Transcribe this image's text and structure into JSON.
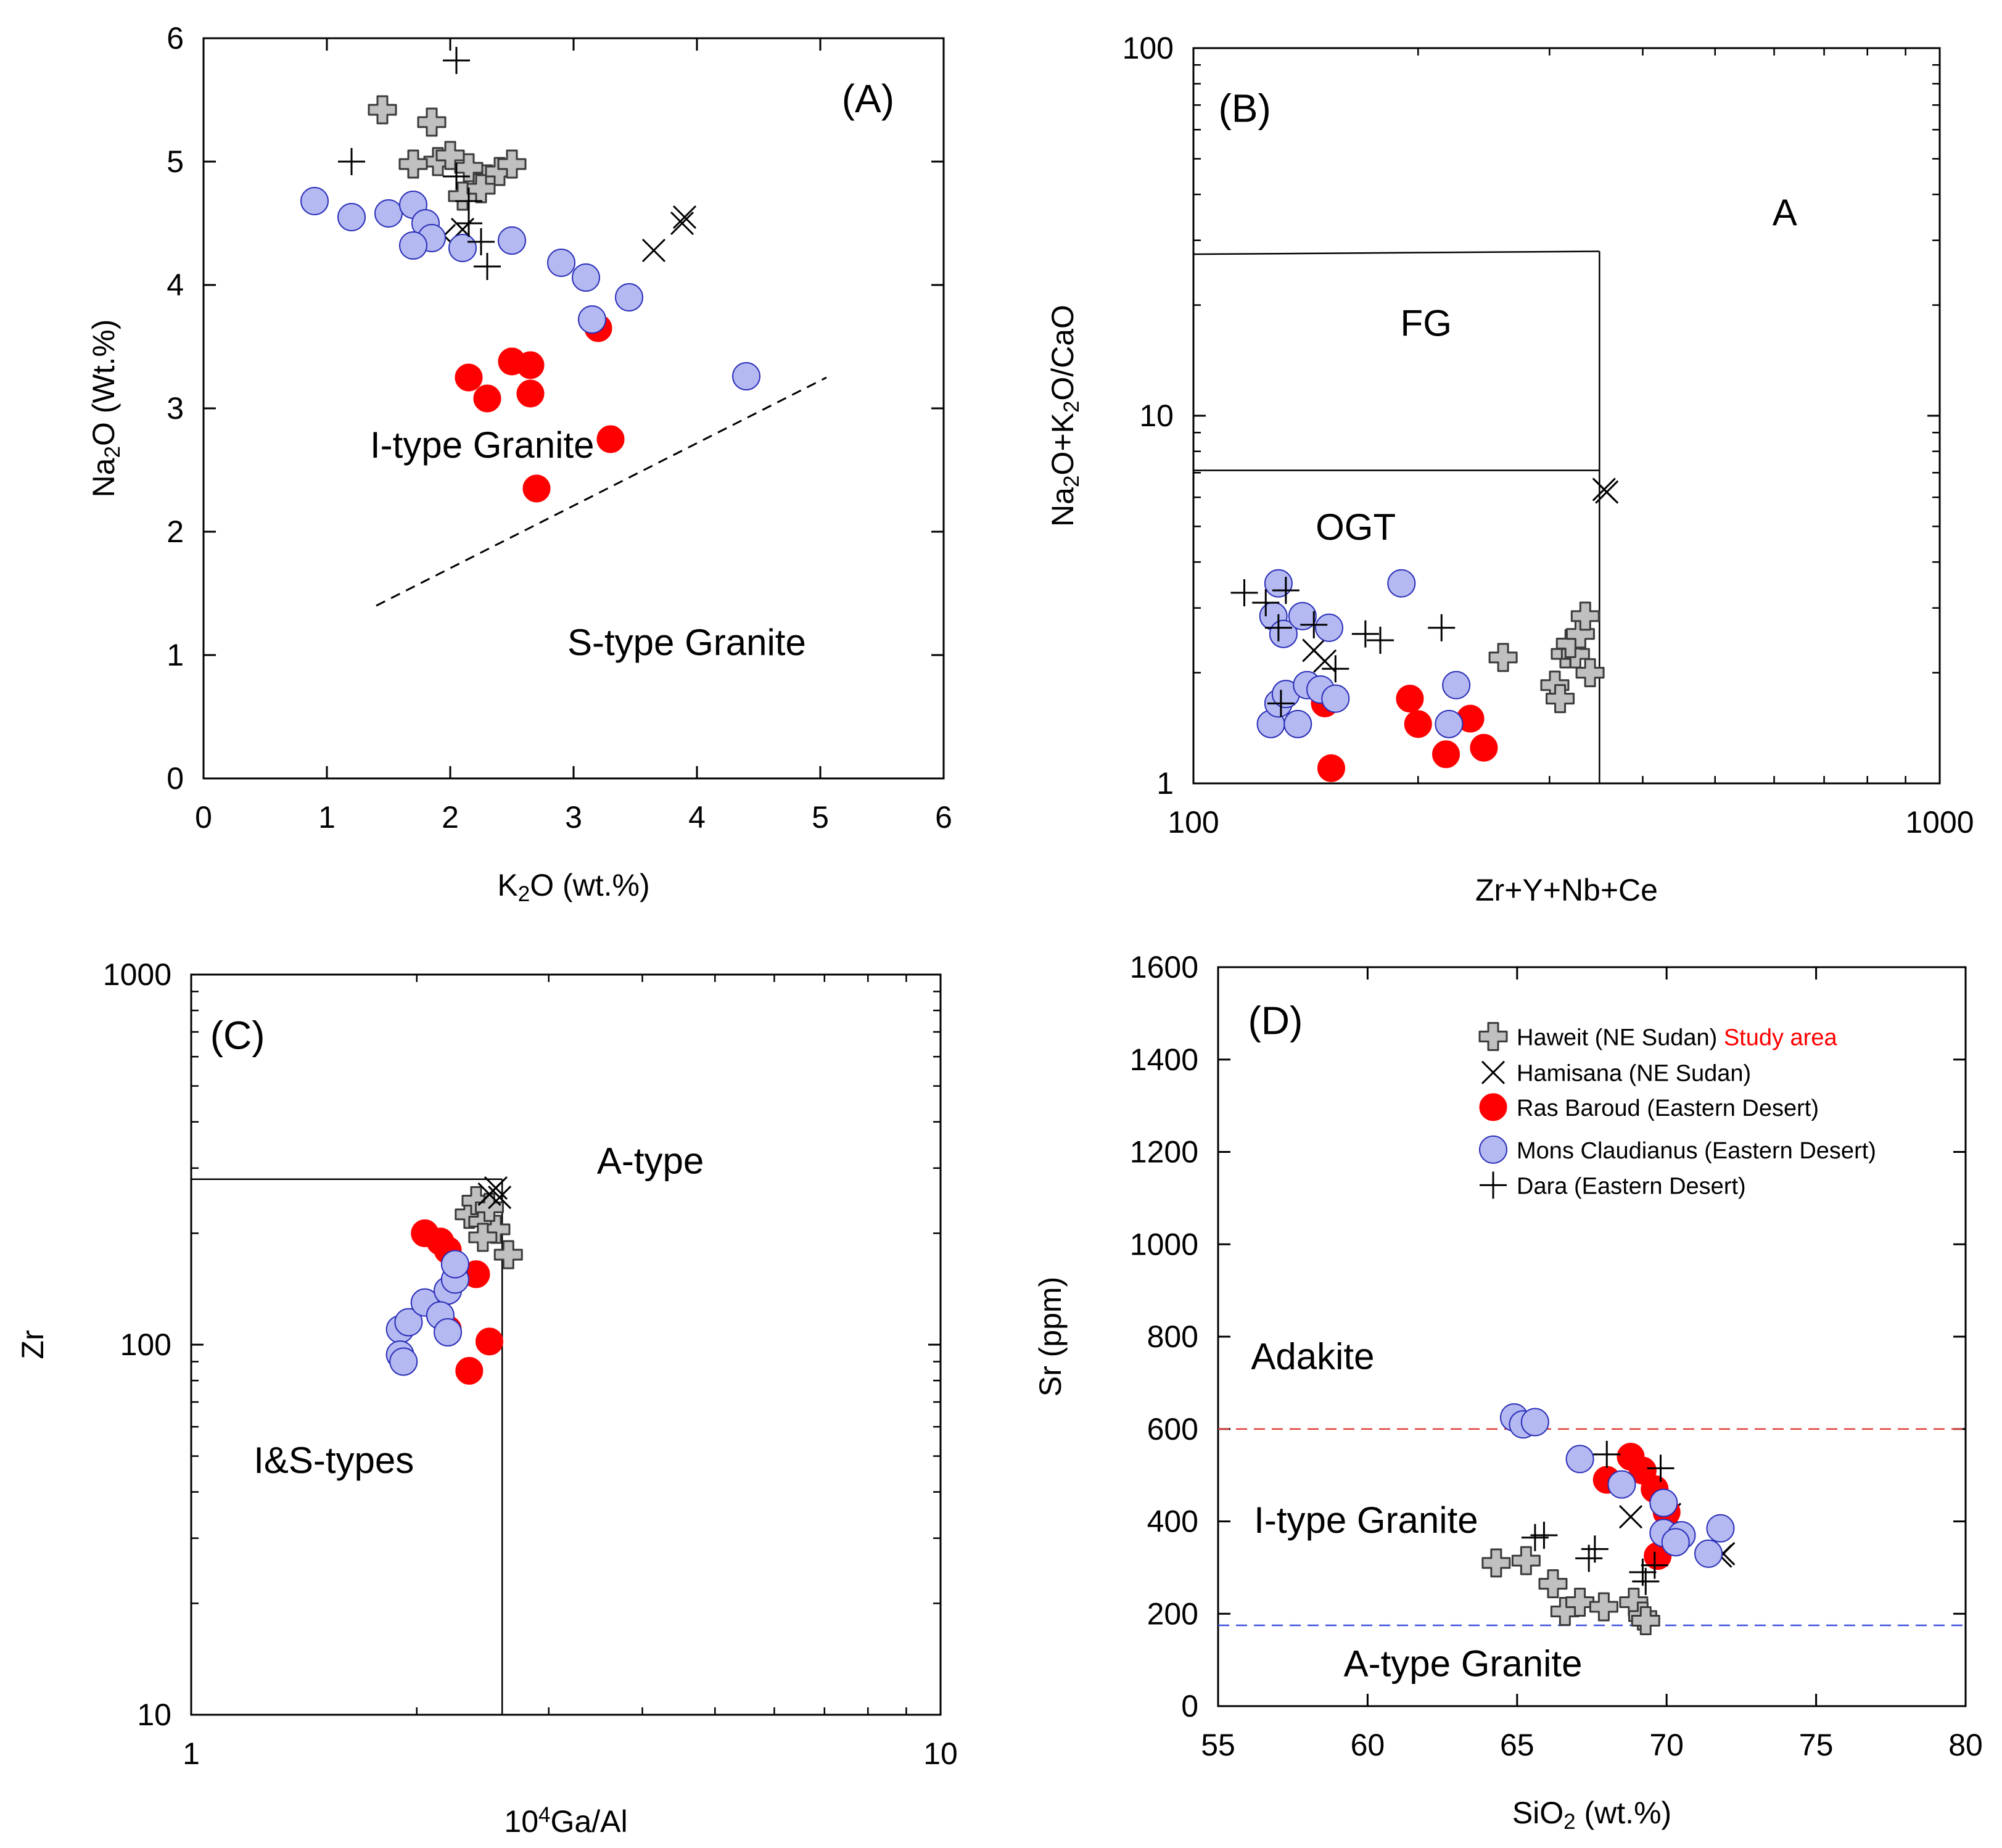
{
  "colors": {
    "haweit_fill": "#c0c0c0",
    "haweit_stroke": "#3a3a3a",
    "ras_baroud": "#ff0000",
    "mons_claudianus_fill": "#b4b9f2",
    "mons_claudianus_stroke": "#2b2fb8",
    "study_area": "#ff0000",
    "adakite_line": "#e0403c",
    "atype_line": "#3a4fe0"
  },
  "legend": {
    "haweit": "Haweit (NE Sudan)",
    "study_area": "Study area",
    "hamisana": "Hamisana (NE Sudan)",
    "ras_baroud": "Ras Baroud (Eastern Desert)",
    "mons_claudianus": "Mons Claudianus (Eastern Desert)",
    "dara": "Dara (Eastern Desert)"
  },
  "chart_data": [
    {
      "id": "A",
      "type": "scatter",
      "panel_label": "(A)",
      "xlabel": "K₂O (wt.%)",
      "ylabel": "Na₂O (Wt.%)",
      "xlim": [
        0,
        6
      ],
      "ylim": [
        0,
        6
      ],
      "xticks": [
        "0",
        "1",
        "2",
        "3",
        "4",
        "5",
        "6"
      ],
      "yticks": [
        "0",
        "1",
        "2",
        "3",
        "4",
        "5",
        "6"
      ],
      "fields": {
        "i_type": "I-type Granite",
        "s_type": "S-type Granite"
      },
      "boundary_dashed": [
        [
          1.4,
          1.4
        ],
        [
          5.05,
          3.25
        ]
      ],
      "series": [
        {
          "name": "Haweit",
          "points": [
            [
              1.45,
              5.42
            ],
            [
              1.85,
              5.32
            ],
            [
              1.9,
              5.0
            ],
            [
              2.0,
              5.05
            ],
            [
              1.7,
              4.98
            ],
            [
              2.15,
              4.95
            ],
            [
              2.1,
              4.72
            ],
            [
              2.3,
              4.86
            ],
            [
              2.4,
              4.92
            ],
            [
              2.5,
              4.98
            ],
            [
              2.25,
              4.78
            ]
          ]
        },
        {
          "name": "Hamisana",
          "points": [
            [
              1.95,
              4.4
            ],
            [
              2.1,
              4.45
            ],
            [
              3.65,
              4.28
            ],
            [
              3.9,
              4.55
            ],
            [
              3.88,
              4.5
            ]
          ]
        },
        {
          "name": "Ras Baroud",
          "points": [
            [
              2.15,
              3.25
            ],
            [
              2.3,
              3.08
            ],
            [
              2.5,
              3.38
            ],
            [
              2.65,
              3.35
            ],
            [
              2.65,
              3.12
            ],
            [
              3.2,
              3.65
            ],
            [
              3.3,
              2.75
            ],
            [
              2.7,
              2.35
            ]
          ]
        },
        {
          "name": "Mons Claudianus",
          "points": [
            [
              0.9,
              4.68
            ],
            [
              1.2,
              4.55
            ],
            [
              1.5,
              4.58
            ],
            [
              1.7,
              4.65
            ],
            [
              1.8,
              4.5
            ],
            [
              1.85,
              4.38
            ],
            [
              1.7,
              4.32
            ],
            [
              2.1,
              4.3
            ],
            [
              2.5,
              4.36
            ],
            [
              2.9,
              4.18
            ],
            [
              3.1,
              4.06
            ],
            [
              3.15,
              3.72
            ],
            [
              3.45,
              3.9
            ],
            [
              4.4,
              3.26
            ]
          ]
        },
        {
          "name": "Dara",
          "points": [
            [
              2.05,
              5.82
            ],
            [
              1.2,
              5.0
            ],
            [
              2.05,
              4.88
            ],
            [
              2.15,
              4.68
            ],
            [
              2.15,
              4.5
            ],
            [
              2.25,
              4.35
            ],
            [
              2.3,
              4.15
            ]
          ]
        }
      ]
    },
    {
      "id": "B",
      "type": "scatter",
      "panel_label": "(B)",
      "xlabel": "Zr+Y+Nb+Ce",
      "ylabel": "Na₂O+K₂O/CaO",
      "xscale": "log",
      "yscale": "log",
      "xlim": [
        100,
        1000
      ],
      "ylim": [
        1,
        100
      ],
      "xticks": [
        "100",
        "1000"
      ],
      "yticks": [
        "1",
        "10",
        "100"
      ],
      "fields": {
        "a": "A",
        "fg": "FG",
        "ogt": "OGT"
      },
      "boundaries": {
        "x_vertical": 350,
        "fg_top_left": 27.5,
        "fg_top_right": 28,
        "ogt_top": 7.1
      },
      "series": [
        {
          "name": "Haweit",
          "points": [
            [
              260,
              2.2
            ],
            [
              305,
              1.85
            ],
            [
              310,
              1.7
            ],
            [
              315,
              2.25
            ],
            [
              325,
              2.25
            ],
            [
              320,
              2.4
            ],
            [
              330,
              2.55
            ],
            [
              335,
              2.85
            ],
            [
              340,
              2.0
            ]
          ]
        },
        {
          "name": "Hamisana",
          "points": [
            [
              145,
              2.3
            ],
            [
              150,
              2.15
            ],
            [
              355,
              6.3
            ],
            [
              358,
              6.2
            ]
          ]
        },
        {
          "name": "Ras Baroud",
          "points": [
            [
              150,
              1.65
            ],
            [
              195,
              1.7
            ],
            [
              200,
              1.45
            ],
            [
              218,
              1.2
            ],
            [
              235,
              1.5
            ],
            [
              245,
              1.25
            ],
            [
              153,
              1.1
            ]
          ]
        },
        {
          "name": "Mons Claudianus",
          "points": [
            [
              127,
              1.45
            ],
            [
              130,
              1.65
            ],
            [
              133,
              1.75
            ],
            [
              138,
              1.45
            ],
            [
              142,
              1.85
            ],
            [
              148,
              1.8
            ],
            [
              155,
              1.7
            ],
            [
              190,
              3.5
            ],
            [
              220,
              1.45
            ],
            [
              225,
              1.85
            ],
            [
              130,
              3.5
            ],
            [
              128,
              2.85
            ],
            [
              132,
              2.55
            ],
            [
              140,
              2.85
            ],
            [
              152,
              2.65
            ]
          ]
        },
        {
          "name": "Dara",
          "points": [
            [
              117,
              3.3
            ],
            [
              125,
              3.1
            ],
            [
              133,
              3.35
            ],
            [
              130,
              2.65
            ],
            [
              145,
              2.7
            ],
            [
              155,
              2.05
            ],
            [
              170,
              2.55
            ],
            [
              178,
              2.45
            ],
            [
              215,
              2.65
            ],
            [
              131,
              1.65
            ]
          ]
        }
      ]
    },
    {
      "id": "C",
      "type": "scatter",
      "panel_label": "(C)",
      "xlabel": "10⁴Ga/Al",
      "ylabel": "Zr",
      "xscale": "log",
      "yscale": "log",
      "xlim": [
        1,
        10
      ],
      "ylim": [
        10,
        1000
      ],
      "xticks": [
        "1",
        "10"
      ],
      "yticks": [
        "10",
        "100",
        "1000"
      ],
      "fields": {
        "a_type": "A-type",
        "is_types": "I&S-types"
      },
      "boundaries": {
        "x_vertical": 2.6,
        "y_horizontal": 280
      },
      "series": [
        {
          "name": "Haweit",
          "points": [
            [
              2.35,
              225
            ],
            [
              2.4,
              245
            ],
            [
              2.45,
              215
            ],
            [
              2.55,
              205
            ],
            [
              2.45,
              195
            ],
            [
              2.5,
              235
            ],
            [
              2.65,
              175
            ]
          ]
        },
        {
          "name": "Hamisana",
          "points": [
            [
              2.5,
              255
            ],
            [
              2.55,
              265
            ],
            [
              2.58,
              250
            ]
          ]
        },
        {
          "name": "Ras Baroud",
          "points": [
            [
              2.05,
              200
            ],
            [
              2.15,
              190
            ],
            [
              2.2,
              180
            ],
            [
              2.4,
              155
            ],
            [
              2.2,
              110
            ],
            [
              2.5,
              102
            ],
            [
              2.35,
              85
            ]
          ]
        },
        {
          "name": "Mons Claudianus",
          "points": [
            [
              1.9,
              110
            ],
            [
              1.95,
              115
            ],
            [
              2.05,
              130
            ],
            [
              2.2,
              140
            ],
            [
              2.25,
              150
            ],
            [
              2.25,
              165
            ],
            [
              2.15,
              120
            ],
            [
              2.2,
              108
            ],
            [
              1.9,
              94
            ],
            [
              1.92,
              90
            ]
          ]
        },
        {
          "name": "Dara",
          "points": []
        }
      ]
    },
    {
      "id": "D",
      "type": "scatter",
      "panel_label": "(D)",
      "xlabel": "SiO₂ (wt.%)",
      "ylabel": "Sr (ppm)",
      "xlim": [
        55,
        80
      ],
      "ylim": [
        0,
        1600
      ],
      "xticks": [
        "55",
        "60",
        "65",
        "70",
        "75",
        "80"
      ],
      "yticks": [
        "0",
        "200",
        "400",
        "600",
        "800",
        "1000",
        "1200",
        "1400",
        "1600"
      ],
      "fields": {
        "adakite": "Adakite",
        "i_type": "I-type Granite",
        "a_type": "A-type Granite"
      },
      "boundaries": {
        "adakite_sr": 600,
        "a_type_sr": 175
      },
      "series": [
        {
          "name": "Haweit",
          "points": [
            [
              64.3,
              310
            ],
            [
              65.3,
              315
            ],
            [
              66.2,
              265
            ],
            [
              66.6,
              205
            ],
            [
              67.1,
              225
            ],
            [
              67.9,
              215
            ],
            [
              68.9,
              225
            ],
            [
              69.2,
              195
            ],
            [
              69.3,
              185
            ]
          ]
        },
        {
          "name": "Hamisana",
          "points": [
            [
              68.8,
              410
            ],
            [
              70.1,
              415
            ],
            [
              71.8,
              325
            ],
            [
              71.9,
              330
            ]
          ]
        },
        {
          "name": "Ras Baroud",
          "points": [
            [
              68.0,
              490
            ],
            [
              68.8,
              540
            ],
            [
              69.2,
              510
            ],
            [
              69.6,
              470
            ],
            [
              70.0,
              420
            ],
            [
              69.7,
              325
            ]
          ]
        },
        {
          "name": "Mons Claudianus",
          "points": [
            [
              64.9,
              625
            ],
            [
              65.2,
              610
            ],
            [
              65.6,
              615
            ],
            [
              67.1,
              535
            ],
            [
              68.5,
              480
            ],
            [
              69.9,
              440
            ],
            [
              69.9,
              375
            ],
            [
              70.5,
              370
            ],
            [
              70.3,
              355
            ],
            [
              71.4,
              330
            ],
            [
              71.8,
              385
            ]
          ]
        },
        {
          "name": "Dara",
          "points": [
            [
              68.0,
              545
            ],
            [
              69.8,
              515
            ],
            [
              65.6,
              365
            ],
            [
              65.9,
              370
            ],
            [
              67.4,
              320
            ],
            [
              67.6,
              340
            ],
            [
              69.2,
              290
            ],
            [
              69.6,
              305
            ],
            [
              69.3,
              270
            ]
          ]
        }
      ]
    }
  ]
}
